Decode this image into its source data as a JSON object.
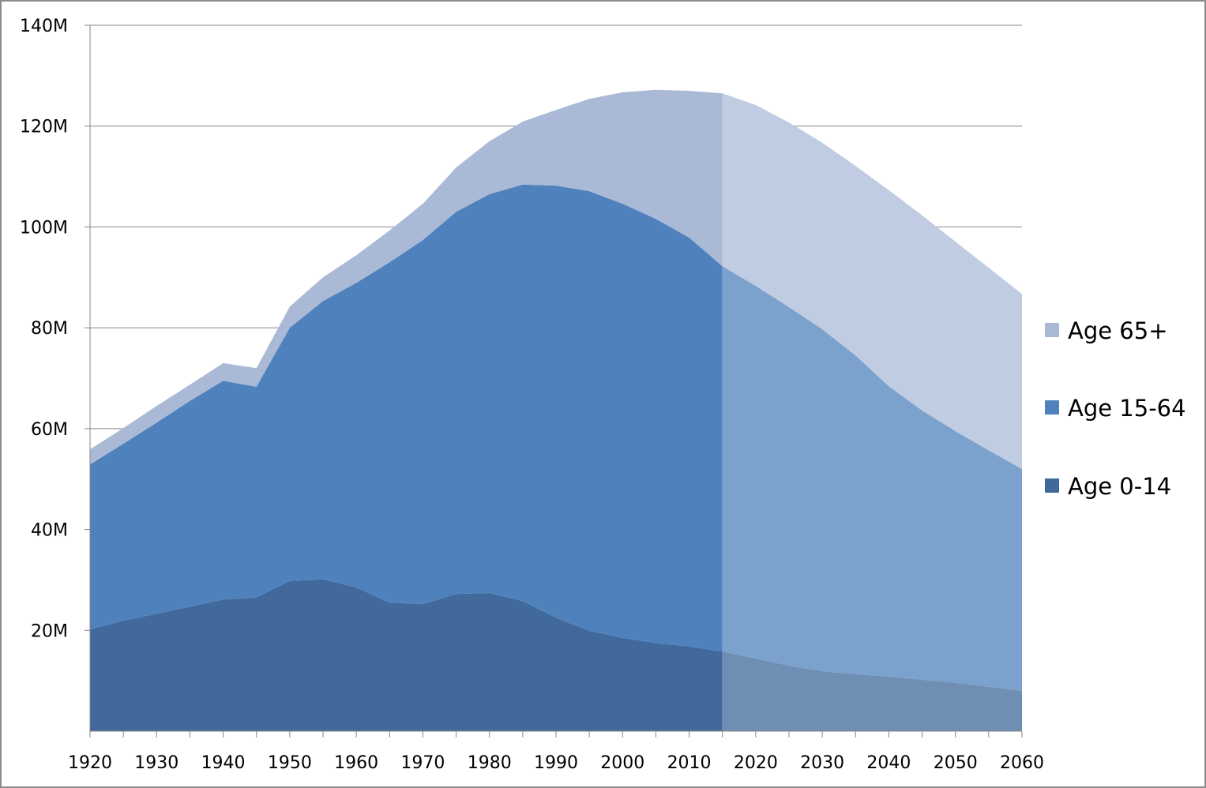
{
  "chart_data": {
    "type": "area",
    "stacked": true,
    "title": "",
    "xlabel": "",
    "ylabel": "",
    "x": [
      1920,
      1925,
      1930,
      1935,
      1940,
      1945,
      1950,
      1955,
      1960,
      1965,
      1970,
      1975,
      1980,
      1985,
      1990,
      1995,
      2000,
      2005,
      2010,
      2015,
      2020,
      2025,
      2030,
      2035,
      2040,
      2045,
      2050,
      2055,
      2060
    ],
    "x_ticks": [
      "1920",
      "1930",
      "1940",
      "1950",
      "1960",
      "1970",
      "1980",
      "1990",
      "2000",
      "2010",
      "2020",
      "2030",
      "2040",
      "2050",
      "2060"
    ],
    "y_ticks": [
      "20M",
      "40M",
      "60M",
      "80M",
      "100M",
      "120M",
      "140M"
    ],
    "ylim": [
      0,
      140
    ],
    "y_unit": "millions",
    "xlim": [
      1920,
      2060
    ],
    "grid": "horizontal",
    "legend_position": "right",
    "projection_start": 2015,
    "series": [
      {
        "name": "Age 0-14",
        "color": "#41699B",
        "projected_color": "#6F8EB4",
        "values": [
          20.2,
          21.9,
          23.3,
          24.7,
          26.1,
          26.5,
          29.8,
          30.1,
          28.5,
          25.5,
          25.2,
          27.2,
          27.4,
          25.8,
          22.5,
          19.9,
          18.5,
          17.5,
          16.8,
          15.8,
          14.4,
          13.0,
          11.9,
          11.3,
          10.8,
          10.2,
          9.6,
          8.8,
          8.0
        ]
      },
      {
        "name": "Age 15-64",
        "color": "#4F81BD",
        "projected_color": "#7BA1CD",
        "values": [
          32.7,
          35.1,
          37.9,
          40.8,
          43.4,
          41.8,
          50.2,
          55.2,
          60.4,
          67.5,
          72.2,
          75.8,
          79.1,
          82.6,
          85.7,
          87.2,
          86.1,
          84.1,
          81.1,
          76.4,
          73.9,
          71.1,
          67.8,
          63.2,
          57.6,
          53.4,
          49.9,
          46.9,
          44.0
        ]
      },
      {
        "name": "Age 65+",
        "color": "#AAB9D5",
        "projected_color": "#C0CCE2",
        "values": [
          3.0,
          3.1,
          3.3,
          3.2,
          3.5,
          3.7,
          4.2,
          4.7,
          5.5,
          6.3,
          7.2,
          8.8,
          10.5,
          12.5,
          15.0,
          18.3,
          22.1,
          25.6,
          29.1,
          34.3,
          35.9,
          36.6,
          37.0,
          37.6,
          38.9,
          38.7,
          37.6,
          36.2,
          34.7
        ]
      }
    ],
    "legend_order": [
      "Age 65+",
      "Age 15-64",
      "Age 0-14"
    ]
  }
}
